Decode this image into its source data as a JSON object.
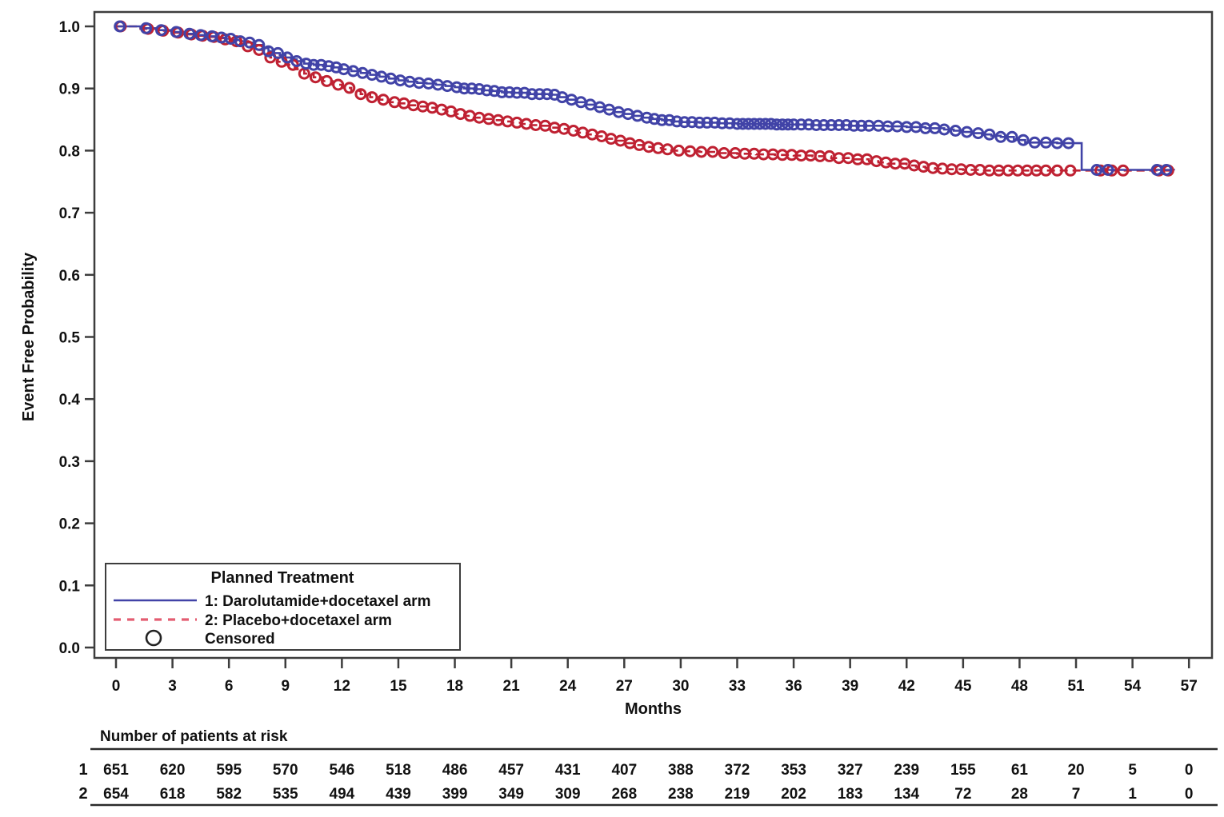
{
  "chart_data": {
    "type": "line",
    "subtype": "kaplan-meier-step",
    "title": "",
    "xlabel": "Months",
    "ylabel": "Event Free Probability",
    "xlim": [
      0,
      57
    ],
    "ylim": [
      0.0,
      1.0
    ],
    "grid": false,
    "x_ticks": [
      0,
      3,
      6,
      9,
      12,
      15,
      18,
      21,
      24,
      27,
      30,
      33,
      36,
      39,
      42,
      45,
      48,
      51,
      54,
      57
    ],
    "y_ticks": [
      1.0,
      0.9,
      0.8,
      0.7,
      0.6,
      0.5,
      0.4,
      0.3,
      0.2,
      0.1,
      0.0
    ],
    "y_tick_labels": [
      "1.0",
      "0.9",
      "0.8",
      "0.7",
      "0.6",
      "0.5",
      "0.4",
      "0.3",
      "0.2",
      "0.1",
      "0.0"
    ],
    "colors": {
      "arm1": "#4143a7",
      "arm2": "#bf2132",
      "arm2_legend_dash": "#e35d72",
      "axis": "#3d3d3d",
      "text": "#111111"
    },
    "legend": {
      "title": "Planned Treatment",
      "position": "inside-bottom-left",
      "entries": [
        {
          "label": "1: Darolutamide+docetaxel arm",
          "style": "solid-line",
          "color": "#4143a7"
        },
        {
          "label": "2: Placebo+docetaxel arm",
          "style": "dashed-line",
          "color": "#e35d72"
        },
        {
          "label": "Censored",
          "style": "open-circle",
          "color": "#111111"
        }
      ]
    },
    "series": [
      {
        "name": "1: Darolutamide+docetaxel arm",
        "color": "#4143a7",
        "line": "solid",
        "end_time": 56.2,
        "steps": [
          [
            0,
            1.0
          ],
          [
            1.3,
            0.997
          ],
          [
            2.2,
            0.994
          ],
          [
            3,
            0.991
          ],
          [
            3.7,
            0.988
          ],
          [
            4.3,
            0.986
          ],
          [
            4.8,
            0.984
          ],
          [
            5.3,
            0.982
          ],
          [
            5.8,
            0.98
          ],
          [
            6.2,
            0.978
          ],
          [
            6.6,
            0.976
          ],
          [
            7,
            0.974
          ],
          [
            7.4,
            0.97
          ],
          [
            7.8,
            0.965
          ],
          [
            8.1,
            0.96
          ],
          [
            8.4,
            0.957
          ],
          [
            8.7,
            0.954
          ],
          [
            9,
            0.95
          ],
          [
            9.3,
            0.947
          ],
          [
            9.6,
            0.944
          ],
          [
            10,
            0.94
          ],
          [
            10.5,
            0.938
          ],
          [
            11,
            0.936
          ],
          [
            11.5,
            0.934
          ],
          [
            12,
            0.931
          ],
          [
            12.5,
            0.928
          ],
          [
            13,
            0.925
          ],
          [
            13.5,
            0.922
          ],
          [
            14,
            0.919
          ],
          [
            14.5,
            0.916
          ],
          [
            15,
            0.913
          ],
          [
            15.5,
            0.911
          ],
          [
            16,
            0.909
          ],
          [
            16.5,
            0.908
          ],
          [
            17,
            0.906
          ],
          [
            17.5,
            0.904
          ],
          [
            18,
            0.902
          ],
          [
            18.5,
            0.9
          ],
          [
            19,
            0.899
          ],
          [
            19.5,
            0.897
          ],
          [
            20,
            0.896
          ],
          [
            20.5,
            0.894
          ],
          [
            21,
            0.893
          ],
          [
            22,
            0.891
          ],
          [
            23,
            0.89
          ],
          [
            23.5,
            0.886
          ],
          [
            24,
            0.882
          ],
          [
            24.5,
            0.878
          ],
          [
            25,
            0.874
          ],
          [
            25.5,
            0.87
          ],
          [
            26,
            0.866
          ],
          [
            26.5,
            0.862
          ],
          [
            27,
            0.859
          ],
          [
            27.5,
            0.856
          ],
          [
            28,
            0.853
          ],
          [
            28.5,
            0.851
          ],
          [
            29,
            0.849
          ],
          [
            29.5,
            0.847
          ],
          [
            30,
            0.846
          ],
          [
            31,
            0.845
          ],
          [
            32,
            0.844
          ],
          [
            33,
            0.843
          ],
          [
            35,
            0.842
          ],
          [
            37,
            0.841
          ],
          [
            39,
            0.84
          ],
          [
            41,
            0.839
          ],
          [
            42,
            0.838
          ],
          [
            43,
            0.836
          ],
          [
            44,
            0.834
          ],
          [
            44.5,
            0.832
          ],
          [
            45,
            0.83
          ],
          [
            45.5,
            0.828
          ],
          [
            46,
            0.826
          ],
          [
            46.5,
            0.824
          ],
          [
            47,
            0.822
          ],
          [
            47.7,
            0.817
          ],
          [
            48.3,
            0.813
          ],
          [
            50,
            0.812
          ],
          [
            51.3,
            0.769
          ],
          [
            56.2,
            0.768
          ]
        ],
        "censor_times": [
          0.2,
          1.6,
          2.4,
          3.2,
          3.9,
          4.5,
          5.1,
          5.6,
          6.1,
          6.6,
          7.1,
          7.6,
          8.1,
          8.6,
          9.1,
          9.6,
          10.1,
          10.5,
          10.9,
          11.3,
          11.7,
          12.1,
          12.6,
          13.1,
          13.6,
          14.1,
          14.6,
          15.1,
          15.6,
          16.1,
          16.6,
          17.1,
          17.6,
          18.1,
          18.5,
          18.9,
          19.3,
          19.7,
          20.1,
          20.5,
          20.9,
          21.3,
          21.7,
          22.1,
          22.5,
          22.9,
          23.3,
          23.7,
          24.2,
          24.7,
          25.2,
          25.7,
          26.2,
          26.7,
          27.2,
          27.7,
          28.2,
          28.6,
          29.0,
          29.4,
          29.8,
          30.2,
          30.6,
          31.0,
          31.4,
          31.8,
          32.2,
          32.6,
          33.0,
          33.3,
          33.6,
          33.9,
          34.2,
          34.5,
          34.8,
          35.1,
          35.4,
          35.7,
          36.0,
          36.4,
          36.8,
          37.2,
          37.6,
          38.0,
          38.4,
          38.8,
          39.2,
          39.6,
          40.0,
          40.5,
          41.0,
          41.5,
          42.0,
          42.5,
          43.0,
          43.5,
          44.0,
          44.6,
          45.2,
          45.8,
          46.4,
          47.0,
          47.6,
          48.2,
          48.8,
          49.4,
          50.0,
          50.6,
          52.1,
          52.7,
          55.3,
          55.8
        ]
      },
      {
        "name": "2: Placebo+docetaxel arm",
        "color": "#bf2132",
        "line": "dashed",
        "end_time": 56.2,
        "steps": [
          [
            0,
            1.0
          ],
          [
            1.3,
            0.996
          ],
          [
            2.2,
            0.993
          ],
          [
            3,
            0.99
          ],
          [
            3.7,
            0.987
          ],
          [
            4.3,
            0.985
          ],
          [
            4.8,
            0.983
          ],
          [
            5.3,
            0.981
          ],
          [
            5.8,
            0.979
          ],
          [
            6.2,
            0.976
          ],
          [
            6.6,
            0.972
          ],
          [
            7,
            0.968
          ],
          [
            7.4,
            0.962
          ],
          [
            7.8,
            0.956
          ],
          [
            8.2,
            0.95
          ],
          [
            8.6,
            0.943
          ],
          [
            9,
            0.938
          ],
          [
            9.5,
            0.931
          ],
          [
            10,
            0.924
          ],
          [
            10.5,
            0.918
          ],
          [
            11,
            0.912
          ],
          [
            11.5,
            0.906
          ],
          [
            12,
            0.901
          ],
          [
            12.5,
            0.896
          ],
          [
            13,
            0.891
          ],
          [
            13.5,
            0.886
          ],
          [
            14,
            0.882
          ],
          [
            14.5,
            0.878
          ],
          [
            15,
            0.876
          ],
          [
            15.5,
            0.873
          ],
          [
            16,
            0.871
          ],
          [
            16.5,
            0.869
          ],
          [
            17,
            0.866
          ],
          [
            17.5,
            0.863
          ],
          [
            18,
            0.859
          ],
          [
            18.5,
            0.856
          ],
          [
            19,
            0.853
          ],
          [
            19.5,
            0.851
          ],
          [
            20,
            0.849
          ],
          [
            20.5,
            0.847
          ],
          [
            21,
            0.845
          ],
          [
            21.5,
            0.843
          ],
          [
            22,
            0.841
          ],
          [
            22.5,
            0.84
          ],
          [
            23,
            0.837
          ],
          [
            23.5,
            0.835
          ],
          [
            24,
            0.832
          ],
          [
            24.5,
            0.829
          ],
          [
            25,
            0.826
          ],
          [
            25.5,
            0.823
          ],
          [
            26,
            0.819
          ],
          [
            26.5,
            0.816
          ],
          [
            27,
            0.812
          ],
          [
            27.5,
            0.809
          ],
          [
            28,
            0.806
          ],
          [
            28.5,
            0.804
          ],
          [
            29,
            0.802
          ],
          [
            29.5,
            0.8
          ],
          [
            30,
            0.799
          ],
          [
            31,
            0.798
          ],
          [
            32,
            0.796
          ],
          [
            33,
            0.795
          ],
          [
            34,
            0.794
          ],
          [
            35,
            0.793
          ],
          [
            36,
            0.792
          ],
          [
            37,
            0.791
          ],
          [
            38,
            0.788
          ],
          [
            39,
            0.786
          ],
          [
            40,
            0.783
          ],
          [
            40.5,
            0.781
          ],
          [
            41,
            0.779
          ],
          [
            42,
            0.776
          ],
          [
            42.5,
            0.774
          ],
          [
            43,
            0.772
          ],
          [
            43.5,
            0.771
          ],
          [
            44,
            0.77
          ],
          [
            45,
            0.769
          ],
          [
            46,
            0.768
          ],
          [
            56.2,
            0.767
          ]
        ],
        "censor_times": [
          0.25,
          1.7,
          2.5,
          3.3,
          4.0,
          4.6,
          5.2,
          5.8,
          6.4,
          7.0,
          7.6,
          8.2,
          8.8,
          9.4,
          10.0,
          10.6,
          11.2,
          11.8,
          12.4,
          13.0,
          13.6,
          14.2,
          14.8,
          15.3,
          15.8,
          16.3,
          16.8,
          17.3,
          17.8,
          18.3,
          18.8,
          19.3,
          19.8,
          20.3,
          20.8,
          21.3,
          21.8,
          22.3,
          22.8,
          23.3,
          23.8,
          24.3,
          24.8,
          25.3,
          25.8,
          26.3,
          26.8,
          27.3,
          27.8,
          28.3,
          28.8,
          29.3,
          29.9,
          30.5,
          31.1,
          31.7,
          32.3,
          32.9,
          33.4,
          33.9,
          34.4,
          34.9,
          35.4,
          35.9,
          36.4,
          36.9,
          37.4,
          37.9,
          38.4,
          38.9,
          39.4,
          39.9,
          40.4,
          40.9,
          41.4,
          41.9,
          42.4,
          42.9,
          43.4,
          43.9,
          44.4,
          44.9,
          45.4,
          45.9,
          46.4,
          46.9,
          47.4,
          47.9,
          48.4,
          48.9,
          49.4,
          50.0,
          50.7,
          52.3,
          52.9,
          53.5,
          55.4,
          55.9
        ]
      }
    ],
    "at_risk_table": {
      "title": "Number of patients at risk",
      "time_points": [
        0,
        3,
        6,
        9,
        12,
        15,
        18,
        21,
        24,
        27,
        30,
        33,
        36,
        39,
        42,
        45,
        48,
        51,
        54,
        57
      ],
      "rows": [
        {
          "label": "1",
          "counts": [
            651,
            620,
            595,
            570,
            546,
            518,
            486,
            457,
            431,
            407,
            388,
            372,
            353,
            327,
            239,
            155,
            61,
            20,
            5,
            0
          ]
        },
        {
          "label": "2",
          "counts": [
            654,
            618,
            582,
            535,
            494,
            439,
            399,
            349,
            309,
            268,
            238,
            219,
            202,
            183,
            134,
            72,
            28,
            7,
            1,
            0
          ]
        }
      ]
    }
  }
}
